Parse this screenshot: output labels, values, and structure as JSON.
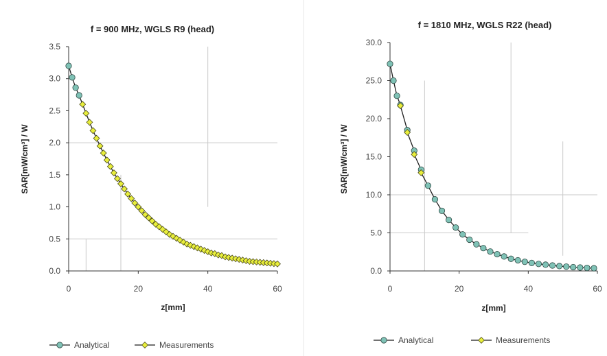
{
  "chart_data": [
    {
      "type": "line",
      "title": "f = 900 MHz, WGLS R9 (head)",
      "xlabel": "z[mm]",
      "ylabel": "SAR[mW/cm³] / W",
      "xlim": [
        0,
        60
      ],
      "ylim": [
        0.0,
        3.5
      ],
      "xticks": [
        "0",
        "20",
        "40",
        "60"
      ],
      "yticks": [
        "0.0",
        "0.5",
        "1.0",
        "1.5",
        "2.0",
        "2.5",
        "3.0",
        "3.5"
      ],
      "grid": "sparse",
      "legend_position": "bottom",
      "series": [
        {
          "name": "Analytical",
          "color": "#7fc2b6",
          "marker": "circle",
          "x": [
            0,
            1,
            2,
            3
          ],
          "y": [
            3.2,
            3.02,
            2.86,
            2.74
          ]
        },
        {
          "name": "Measurements",
          "color": "#e8ee3c",
          "marker": "diamond",
          "x": [
            4,
            5,
            6,
            7,
            8,
            9,
            10,
            11,
            12,
            13,
            14,
            15,
            16,
            17,
            18,
            19,
            20,
            21,
            22,
            23,
            24,
            25,
            26,
            27,
            28,
            29,
            30,
            31,
            32,
            33,
            34,
            35,
            36,
            37,
            38,
            39,
            40,
            41,
            42,
            43,
            44,
            45,
            46,
            47,
            48,
            49,
            50,
            51,
            52,
            53,
            54,
            55,
            56,
            57,
            58,
            59,
            60
          ],
          "y": [
            2.6,
            2.46,
            2.32,
            2.19,
            2.07,
            1.95,
            1.84,
            1.73,
            1.63,
            1.53,
            1.44,
            1.36,
            1.28,
            1.2,
            1.13,
            1.06,
            1.0,
            0.94,
            0.88,
            0.83,
            0.78,
            0.73,
            0.69,
            0.65,
            0.61,
            0.57,
            0.54,
            0.51,
            0.48,
            0.45,
            0.42,
            0.4,
            0.38,
            0.36,
            0.34,
            0.32,
            0.3,
            0.28,
            0.27,
            0.25,
            0.24,
            0.22,
            0.21,
            0.2,
            0.19,
            0.18,
            0.17,
            0.16,
            0.15,
            0.145,
            0.14,
            0.135,
            0.13,
            0.125,
            0.12,
            0.115,
            0.11
          ]
        }
      ]
    },
    {
      "type": "line",
      "title": "f = 1810 MHz, WGLS R22 (head)",
      "xlabel": "z[mm]",
      "ylabel": "SAR[mW/cm³] / W",
      "xlim": [
        0,
        60
      ],
      "ylim": [
        0.0,
        30.0
      ],
      "xticks": [
        "0",
        "20",
        "40",
        "60"
      ],
      "yticks": [
        "0.0",
        "5.0",
        "10.0",
        "15.0",
        "20.0",
        "25.0",
        "30.0"
      ],
      "grid": "sparse",
      "legend_position": "bottom",
      "series": [
        {
          "name": "Analytical",
          "color": "#7fc2b6",
          "marker": "circle",
          "x": [
            0,
            1,
            2,
            3,
            5,
            7,
            9,
            11,
            13,
            15,
            17,
            19,
            21,
            23,
            25,
            27,
            29,
            31,
            33,
            35,
            37,
            39,
            41,
            43,
            45,
            47,
            49,
            51,
            53,
            55,
            57,
            59
          ],
          "y": [
            27.2,
            25.0,
            23.0,
            21.8,
            18.5,
            15.8,
            13.3,
            11.2,
            9.4,
            7.9,
            6.7,
            5.7,
            4.8,
            4.1,
            3.5,
            3.0,
            2.55,
            2.2,
            1.9,
            1.6,
            1.4,
            1.2,
            1.05,
            0.92,
            0.82,
            0.72,
            0.64,
            0.57,
            0.5,
            0.45,
            0.4,
            0.36
          ]
        },
        {
          "name": "Measurements",
          "color": "#e8ee3c",
          "marker": "diamond",
          "x": [
            3,
            5,
            7,
            9
          ],
          "y": [
            21.7,
            18.2,
            15.3,
            12.9
          ]
        }
      ]
    }
  ]
}
